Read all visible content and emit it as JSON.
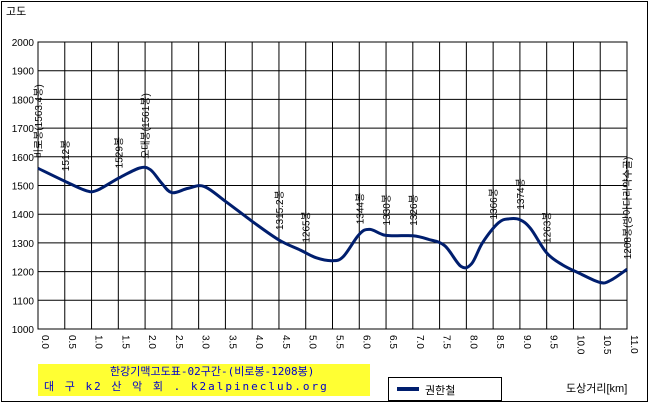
{
  "chart_data": {
    "type": "line",
    "title": "한강기맥고도표-02구간-(비로봉-1208봉)",
    "subtitle": "대 구 k2 산 악 회 . k2alpineclub.org",
    "ylabel": "고도",
    "xlabel": "도상거리[km]",
    "xlim": [
      0,
      11
    ],
    "ylim": [
      1000,
      2000
    ],
    "x_ticks": [
      "0.0",
      "0.5",
      "1.0",
      "1.5",
      "2.0",
      "2.5",
      "3.0",
      "3.5",
      "4.0",
      "4.5",
      "5.0",
      "5.5",
      "6.0",
      "6.5",
      "7.0",
      "7.5",
      "8.0",
      "8.5",
      "9.0",
      "9.5",
      "10.0",
      "10.5",
      "11.0"
    ],
    "y_ticks": [
      "2000",
      "1900",
      "1800",
      "1700",
      "1600",
      "1500",
      "1400",
      "1300",
      "1200",
      "1100",
      "1000"
    ],
    "grid": true,
    "series": [
      {
        "name": "권한철",
        "color": "#001e6e",
        "x": [
          0.0,
          0.5,
          0.9,
          1.1,
          1.5,
          1.9,
          2.1,
          2.3,
          2.5,
          2.8,
          3.1,
          3.5,
          4.0,
          4.5,
          4.9,
          5.2,
          5.5,
          5.7,
          6.0,
          6.2,
          6.5,
          7.0,
          7.3,
          7.6,
          7.9,
          8.1,
          8.3,
          8.6,
          8.8,
          9.0,
          9.2,
          9.5,
          9.8,
          10.1,
          10.5,
          10.7,
          11.0
        ],
        "y": [
          1560,
          1515,
          1482,
          1483,
          1525,
          1561,
          1555,
          1510,
          1475,
          1490,
          1497,
          1445,
          1375,
          1310,
          1275,
          1248,
          1238,
          1252,
          1330,
          1347,
          1326,
          1325,
          1312,
          1290,
          1218,
          1228,
          1300,
          1370,
          1384,
          1381,
          1350,
          1265,
          1223,
          1195,
          1162,
          1170,
          1208
        ]
      }
    ],
    "annotations": [
      {
        "text": "비로봉(1563.4봉)",
        "x": 0.0
      },
      {
        "text": "1512봉",
        "x": 0.5
      },
      {
        "text": "1529봉",
        "x": 1.5
      },
      {
        "text": "오대봉(1561봉)",
        "x": 2.0
      },
      {
        "text": "1315.2봉",
        "x": 4.5
      },
      {
        "text": "1265봉",
        "x": 5.0
      },
      {
        "text": "1344봉",
        "x": 6.0
      },
      {
        "text": "1330봉",
        "x": 6.5
      },
      {
        "text": "1326봉",
        "x": 7.0
      },
      {
        "text": "1366봉",
        "x": 8.5
      },
      {
        "text": "1374봉",
        "x": 9.0
      },
      {
        "text": "1263봉",
        "x": 9.5
      },
      {
        "text": "1208봉(방아다리약수골)",
        "x": 11.0
      }
    ]
  }
}
